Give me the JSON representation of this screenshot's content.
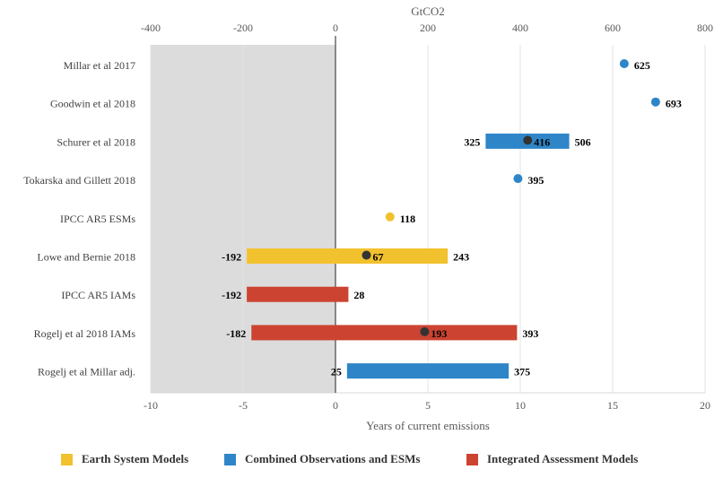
{
  "chart_data": {
    "type": "bar",
    "x_top_label": "GtCO2",
    "x_bottom_label": "Years of current emissions",
    "top_axis": {
      "range": [
        -400,
        800
      ],
      "ticks": [
        -400,
        -200,
        0,
        200,
        400,
        600,
        800
      ]
    },
    "bottom_axis": {
      "range": [
        -10,
        20
      ],
      "ticks": [
        -10,
        -5,
        0,
        5,
        10,
        15,
        20
      ]
    },
    "shaded_region": [
      -400,
      0
    ],
    "categories": [
      "Millar et al 2017",
      "Goodwin et al 2018",
      "Schurer et al 2018",
      "Tokarska and Gillett 2018",
      "IPCC AR5 ESMs",
      "Lowe and Bernie 2018",
      "IPCC AR5 IAMs",
      "Rogelj et al 2018 IAMs",
      "Rogelj et al Millar adj."
    ],
    "items": [
      {
        "category": "Millar et al 2017",
        "group": "Combined Observations and ESMs",
        "low": null,
        "high": null,
        "mid": 625,
        "low_label": "",
        "high_label": "",
        "mid_label": "625"
      },
      {
        "category": "Goodwin et al 2018",
        "group": "Combined Observations and ESMs",
        "low": null,
        "high": null,
        "mid": 693,
        "low_label": "",
        "high_label": "",
        "mid_label": "693"
      },
      {
        "category": "Schurer et al 2018",
        "group": "Combined Observations and ESMs",
        "low": 325,
        "high": 506,
        "mid": 416,
        "low_label": "325",
        "high_label": "506",
        "mid_label": "416"
      },
      {
        "category": "Tokarska and Gillett 2018",
        "group": "Combined Observations and ESMs",
        "low": null,
        "high": null,
        "mid": 395,
        "low_label": "",
        "high_label": "",
        "mid_label": "395"
      },
      {
        "category": "IPCC AR5 ESMs",
        "group": "Earth System Models",
        "low": null,
        "high": null,
        "mid": 118,
        "low_label": "",
        "high_label": "",
        "mid_label": "118"
      },
      {
        "category": "Lowe and Bernie 2018",
        "group": "Earth System Models",
        "low": -192,
        "high": 243,
        "mid": 67,
        "low_label": "-192",
        "high_label": "243",
        "mid_label": "67"
      },
      {
        "category": "IPCC AR5 IAMs",
        "group": "Integrated Assessment Models",
        "low": -192,
        "high": 28,
        "mid": null,
        "low_label": "-192",
        "high_label": "28",
        "mid_label": ""
      },
      {
        "category": "Rogelj et al 2018 IAMs",
        "group": "Integrated Assessment Models",
        "low": -182,
        "high": 393,
        "mid": 193,
        "low_label": "-182",
        "high_label": "393",
        "mid_label": "193"
      },
      {
        "category": "Rogelj et al Millar adj.",
        "group": "Combined Observations and ESMs",
        "low": 25,
        "high": 375,
        "mid": null,
        "low_label": "25",
        "high_label": "375",
        "mid_label": ""
      }
    ],
    "legend": [
      {
        "name": "Earth System Models",
        "color": "#F2C12E"
      },
      {
        "name": "Combined Observations and ESMs",
        "color": "#2E86C8"
      },
      {
        "name": "Integrated Assessment Models",
        "color": "#CC4431"
      }
    ],
    "colors": {
      "Earth System Models": "#F2C12E",
      "Combined Observations and ESMs": "#2E86C8",
      "Integrated Assessment Models": "#CC4431",
      "shade": "#DCDCDC",
      "midpoint_marker": "#333333"
    },
    "grid": true,
    "legend_position": "bottom"
  }
}
